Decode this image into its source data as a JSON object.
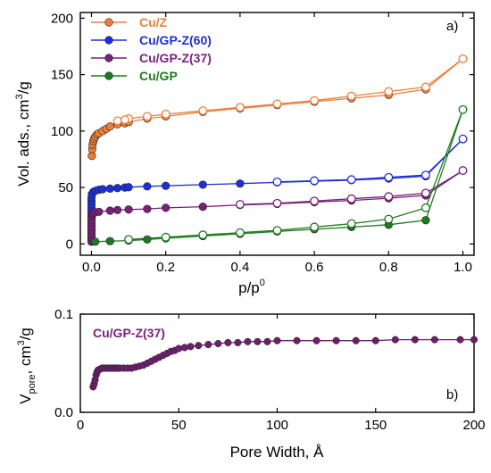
{
  "chart_data": [
    {
      "panel": "a)",
      "type": "line",
      "xlabel_main": "p/p",
      "xlabel_sup": "0",
      "ylabel_main": "Vol. ads., cm",
      "ylabel_sup": "3",
      "ylabel_tail": "/g",
      "xlim": [
        -0.03,
        1.03
      ],
      "ylim": [
        -10,
        205
      ],
      "xticks": [
        "0.0",
        "0.2",
        "0.4",
        "0.6",
        "0.8",
        "1.0"
      ],
      "xtick_values": [
        0,
        0.2,
        0.4,
        0.6,
        0.8,
        1.0
      ],
      "yticks": [
        "0",
        "50",
        "100",
        "150",
        "200"
      ],
      "ytick_values": [
        0,
        50,
        100,
        150,
        200
      ],
      "legend_position": "top-left",
      "series": [
        {
          "name": "Cu/Z",
          "color": "#ee7f3a",
          "adsorption": [
            [
              0.001,
              78
            ],
            [
              0.002,
              84
            ],
            [
              0.003,
              88
            ],
            [
              0.005,
              91
            ],
            [
              0.007,
              93
            ],
            [
              0.01,
              95
            ],
            [
              0.015,
              97
            ],
            [
              0.02,
              98
            ],
            [
              0.03,
              100
            ],
            [
              0.04,
              102
            ],
            [
              0.05,
              104
            ],
            [
              0.07,
              106
            ],
            [
              0.09,
              107
            ],
            [
              0.1,
              108
            ],
            [
              0.15,
              111
            ],
            [
              0.2,
              113
            ],
            [
              0.3,
              117
            ],
            [
              0.4,
              120
            ],
            [
              0.5,
              123
            ],
            [
              0.6,
              126
            ],
            [
              0.7,
              129
            ],
            [
              0.8,
              132
            ],
            [
              0.9,
              137
            ],
            [
              1.0,
              164
            ]
          ],
          "desorption": [
            [
              1.0,
              164
            ],
            [
              0.9,
              139
            ],
            [
              0.8,
              135
            ],
            [
              0.7,
              131
            ],
            [
              0.6,
              127
            ],
            [
              0.5,
              124
            ],
            [
              0.4,
              121
            ],
            [
              0.3,
              118
            ],
            [
              0.2,
              115
            ],
            [
              0.15,
              113
            ],
            [
              0.1,
              111
            ],
            [
              0.09,
              110
            ],
            [
              0.07,
              109
            ]
          ]
        },
        {
          "name": "Cu/GP-Z(60)",
          "color": "#1f2fd8",
          "adsorption": [
            [
              0.0,
              2
            ],
            [
              0.0,
              5
            ],
            [
              0.0,
              8
            ],
            [
              0.0,
              11
            ],
            [
              0.0,
              14
            ],
            [
              0.0,
              17
            ],
            [
              0.0,
              20
            ],
            [
              0.0,
              23
            ],
            [
              0.0,
              26
            ],
            [
              0.0,
              29
            ],
            [
              0.0,
              32
            ],
            [
              0.0,
              35
            ],
            [
              0.0,
              38
            ],
            [
              0.0,
              41
            ],
            [
              0.001,
              44
            ],
            [
              0.005,
              46
            ],
            [
              0.01,
              47
            ],
            [
              0.02,
              48
            ],
            [
              0.03,
              48.5
            ],
            [
              0.05,
              49
            ],
            [
              0.07,
              49.5
            ],
            [
              0.09,
              50
            ],
            [
              0.1,
              50.3
            ],
            [
              0.15,
              51
            ],
            [
              0.2,
              51.5
            ],
            [
              0.3,
              52.5
            ],
            [
              0.4,
              53.5
            ],
            [
              0.5,
              54.5
            ],
            [
              0.6,
              55.5
            ],
            [
              0.7,
              56.5
            ],
            [
              0.8,
              58
            ],
            [
              0.9,
              60
            ],
            [
              1.0,
              93
            ]
          ],
          "desorption": [
            [
              1.0,
              93
            ],
            [
              0.9,
              61
            ],
            [
              0.8,
              59
            ],
            [
              0.7,
              57
            ],
            [
              0.6,
              56
            ],
            [
              0.5,
              55
            ]
          ]
        },
        {
          "name": "Cu/GP-Z(37)",
          "color": "#7a1f7a",
          "adsorption": [
            [
              0.0,
              3
            ],
            [
              0.0,
              6
            ],
            [
              0.0,
              9
            ],
            [
              0.0,
              12
            ],
            [
              0.0,
              15
            ],
            [
              0.0,
              18
            ],
            [
              0.0,
              21
            ],
            [
              0.0,
              24
            ],
            [
              0.002,
              26
            ],
            [
              0.005,
              27
            ],
            [
              0.01,
              28
            ],
            [
              0.02,
              28.5
            ],
            [
              0.05,
              29.5
            ],
            [
              0.07,
              30
            ],
            [
              0.1,
              30.5
            ],
            [
              0.15,
              31
            ],
            [
              0.2,
              32
            ],
            [
              0.3,
              33
            ],
            [
              0.4,
              34.5
            ],
            [
              0.5,
              35.5
            ],
            [
              0.6,
              37
            ],
            [
              0.7,
              38.5
            ],
            [
              0.8,
              40.5
            ],
            [
              0.9,
              43
            ],
            [
              1.0,
              65
            ]
          ],
          "desorption": [
            [
              1.0,
              65
            ],
            [
              0.9,
              45
            ],
            [
              0.8,
              42
            ],
            [
              0.7,
              40
            ],
            [
              0.6,
              38
            ],
            [
              0.5,
              36
            ],
            [
              0.4,
              35
            ]
          ]
        },
        {
          "name": "Cu/GP",
          "color": "#1e7a1e",
          "adsorption": [
            [
              0.01,
              2
            ],
            [
              0.05,
              2.5
            ],
            [
              0.1,
              3
            ],
            [
              0.15,
              4
            ],
            [
              0.2,
              5
            ],
            [
              0.3,
              7
            ],
            [
              0.4,
              9
            ],
            [
              0.5,
              11
            ],
            [
              0.6,
              13
            ],
            [
              0.7,
              15
            ],
            [
              0.8,
              17
            ],
            [
              0.9,
              21
            ],
            [
              1.0,
              119
            ]
          ],
          "desorption": [
            [
              1.0,
              119
            ],
            [
              0.9,
              32
            ],
            [
              0.8,
              22
            ],
            [
              0.7,
              18
            ],
            [
              0.6,
              15
            ],
            [
              0.5,
              12
            ],
            [
              0.4,
              10
            ],
            [
              0.3,
              8
            ],
            [
              0.2,
              6
            ],
            [
              0.1,
              4
            ]
          ]
        }
      ]
    },
    {
      "panel": "b)",
      "type": "line",
      "xlabel": "Pore Width, Å",
      "ylabel_main": "V",
      "ylabel_sub": "pore",
      "ylabel_tail": ", cm",
      "ylabel_sup": "3",
      "ylabel_end": "/g",
      "xlim": [
        0,
        200
      ],
      "ylim": [
        0,
        0.1
      ],
      "xticks": [
        "0",
        "50",
        "100",
        "150",
        "200"
      ],
      "xtick_values": [
        0,
        50,
        100,
        150,
        200
      ],
      "yticks": [
        "0.0",
        "0.1"
      ],
      "ytick_values": [
        0,
        0.1
      ],
      "annotation": "Cu/GP-Z(37)",
      "series": [
        {
          "name": "Cu/GP-Z(37)",
          "color": "#6b1f6b",
          "x": [
            6.5,
            7,
            7.5,
            8,
            8.5,
            9,
            10,
            11,
            12,
            13,
            14,
            15,
            16,
            17,
            18,
            19,
            20,
            22,
            24,
            26,
            28,
            30,
            32,
            34,
            36,
            38,
            40,
            42,
            44,
            46,
            48,
            50,
            53,
            56,
            60,
            65,
            70,
            75,
            80,
            85,
            90,
            95,
            100,
            110,
            120,
            130,
            140,
            150,
            160,
            170,
            180,
            193,
            200
          ],
          "y": [
            0.026,
            0.029,
            0.033,
            0.038,
            0.041,
            0.043,
            0.044,
            0.045,
            0.045,
            0.045,
            0.045,
            0.045,
            0.045,
            0.045,
            0.045,
            0.045,
            0.045,
            0.045,
            0.045,
            0.045,
            0.046,
            0.047,
            0.048,
            0.05,
            0.052,
            0.054,
            0.056,
            0.058,
            0.06,
            0.062,
            0.063,
            0.065,
            0.066,
            0.067,
            0.068,
            0.069,
            0.07,
            0.071,
            0.071,
            0.072,
            0.072,
            0.072,
            0.073,
            0.073,
            0.073,
            0.073,
            0.073,
            0.073,
            0.074,
            0.074,
            0.074,
            0.074,
            0.074
          ]
        }
      ]
    }
  ]
}
